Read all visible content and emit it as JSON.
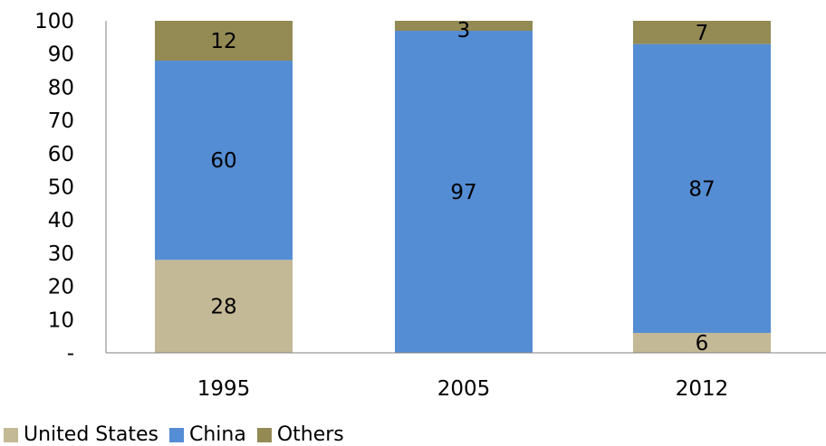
{
  "chart_data": {
    "type": "bar",
    "stacked": true,
    "categories": [
      "1995",
      "2005",
      "2012"
    ],
    "series": [
      {
        "name": "United States",
        "values": [
          28,
          0,
          6
        ],
        "labels": [
          "28",
          "",
          "6"
        ],
        "color": "#c4b996"
      },
      {
        "name": "China",
        "values": [
          60,
          97,
          87
        ],
        "labels": [
          "60",
          "97",
          "87"
        ],
        "color": "#548dd4"
      },
      {
        "name": "Others",
        "values": [
          12,
          3,
          7
        ],
        "labels": [
          "12",
          "3",
          "7"
        ],
        "color": "#948a54"
      }
    ],
    "y_ticks": [
      "-",
      "10",
      "20",
      "30",
      "40",
      "50",
      "60",
      "70",
      "80",
      "90",
      "100"
    ],
    "ylim": [
      0,
      100
    ],
    "grid": false,
    "legend_position": "bottom-left"
  }
}
